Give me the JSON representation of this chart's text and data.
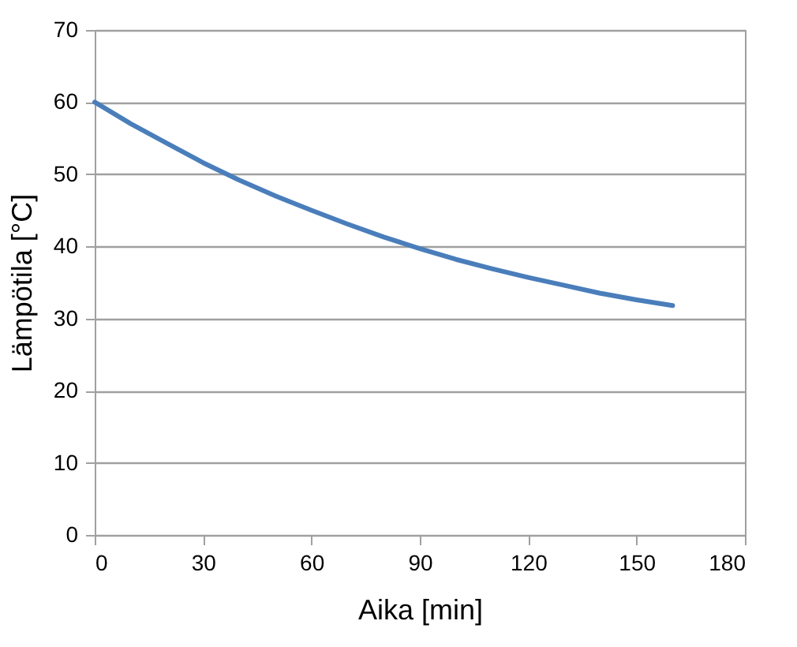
{
  "chart_data": {
    "type": "line",
    "xlabel": "Aika [min]",
    "ylabel": "Lämpötila [°C]",
    "x": [
      0,
      10,
      20,
      30,
      40,
      50,
      60,
      70,
      80,
      90,
      100,
      110,
      120,
      130,
      140,
      150,
      160
    ],
    "series": [
      {
        "color": "#4a7ebb",
        "values": [
          60,
          57,
          54.3,
          51.6,
          49.2,
          47,
          45,
          43.1,
          41.3,
          39.7,
          38.2,
          36.9,
          35.7,
          34.6,
          33.5,
          32.6,
          31.8
        ]
      }
    ],
    "xlim": [
      0,
      180
    ],
    "xticks": [
      0,
      30,
      60,
      90,
      120,
      150,
      180
    ],
    "ylim": [
      0,
      70
    ],
    "yticks": [
      0,
      10,
      20,
      30,
      40,
      50,
      60,
      70
    ],
    "grid": "y",
    "marker": "none",
    "line_style": "solid"
  }
}
